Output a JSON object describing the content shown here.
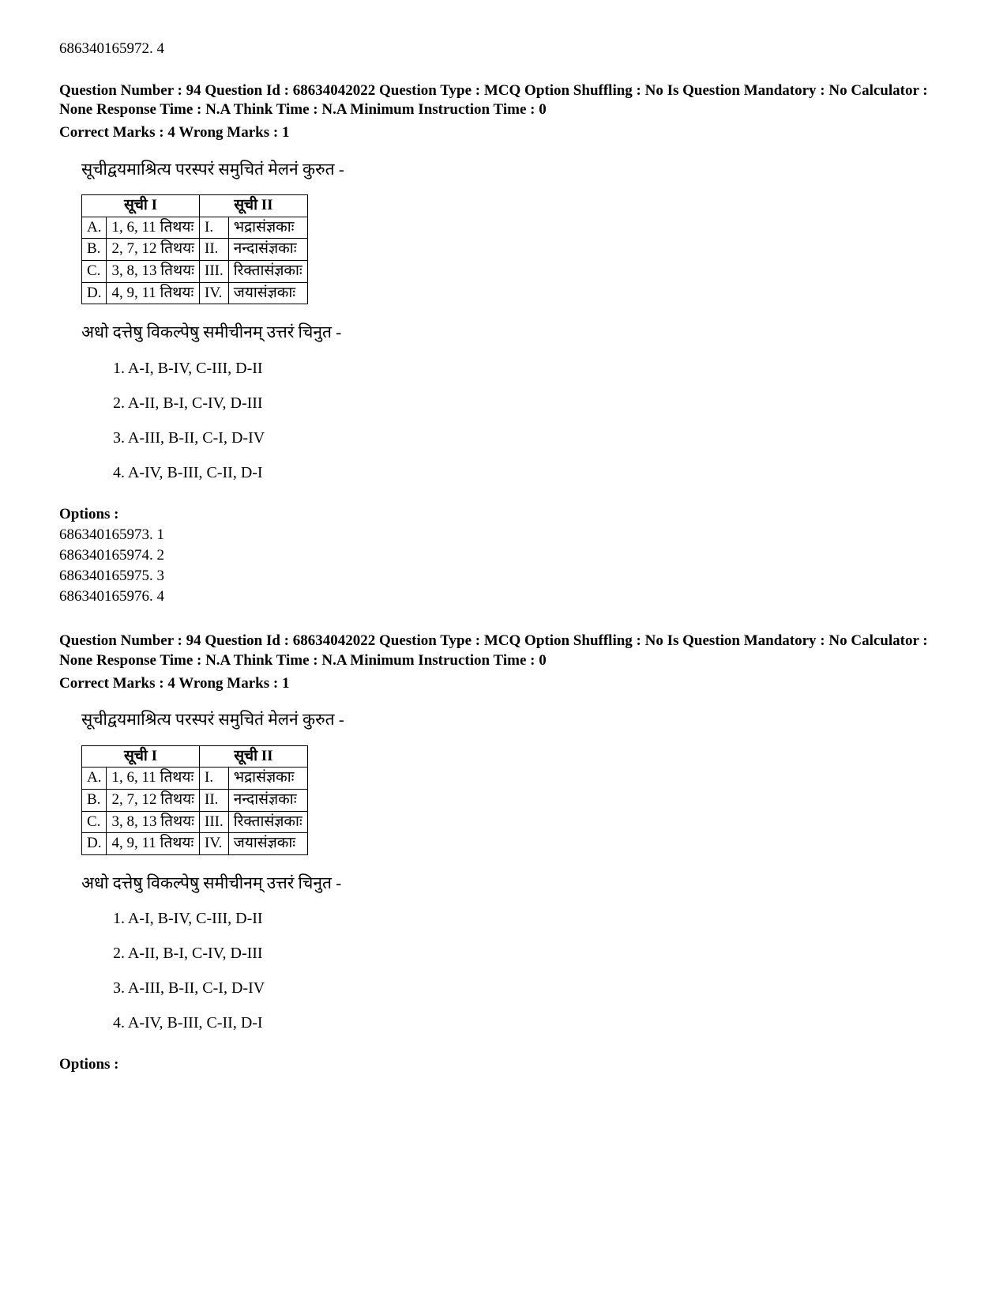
{
  "top_residual_option": "686340165972. 4",
  "questions": [
    {
      "meta": "Question Number : 94 Question Id : 68634042022 Question Type : MCQ Option Shuffling : No Is Question Mandatory : No Calculator : None Response Time : N.A Think Time : N.A Minimum Instruction Time : 0",
      "marks": "Correct Marks : 4 Wrong Marks : 1",
      "instruction": "सूचीद्वयमाश्रित्य परस्परं समुचितं मेलनं कुरुत -",
      "table": {
        "headers": {
          "h1": "सूची I",
          "h2": "सूची II"
        },
        "rows": [
          {
            "la": "A.",
            "c1": "1, 6, 11 तिथयः",
            "lb": "I.",
            "c2": "भद्रासंज्ञकाः"
          },
          {
            "la": "B.",
            "c1": "2, 7, 12 तिथयः",
            "lb": "II.",
            "c2": "नन्दासंज्ञकाः"
          },
          {
            "la": "C.",
            "c1": "3, 8, 13 तिथयः",
            "lb": "III.",
            "c2": "रिक्तासंज्ञकाः"
          },
          {
            "la": "D.",
            "c1": "4, 9, 11 तिथयः",
            "lb": "IV.",
            "c2": "जयासंज्ञकाः"
          }
        ]
      },
      "sub_instruction": "अधो दत्तेषु विकल्पेषु समीचीनम् उत्तरं चिनुत -",
      "choices": [
        "1. A-I, B-IV, C-III, D-II",
        "2. A-II, B-I, C-IV, D-III",
        "3. A-III, B-II, C-I, D-IV",
        "4. A-IV, B-III, C-II, D-I"
      ],
      "options_label": "Options :",
      "options": [
        "686340165973. 1",
        "686340165974. 2",
        "686340165975. 3",
        "686340165976. 4"
      ]
    },
    {
      "meta": "Question Number : 94 Question Id : 68634042022 Question Type : MCQ Option Shuffling : No Is Question Mandatory : No Calculator : None Response Time : N.A Think Time : N.A Minimum Instruction Time : 0",
      "marks": "Correct Marks : 4 Wrong Marks : 1",
      "instruction": "सूचीद्वयमाश्रित्य परस्परं समुचितं मेलनं कुरुत -",
      "table": {
        "headers": {
          "h1": "सूची I",
          "h2": "सूची II"
        },
        "rows": [
          {
            "la": "A.",
            "c1": "1, 6, 11 तिथयः",
            "lb": "I.",
            "c2": "भद्रासंज्ञकाः"
          },
          {
            "la": "B.",
            "c1": "2, 7, 12 तिथयः",
            "lb": "II.",
            "c2": "नन्दासंज्ञकाः"
          },
          {
            "la": "C.",
            "c1": "3, 8, 13 तिथयः",
            "lb": "III.",
            "c2": "रिक्तासंज्ञकाः"
          },
          {
            "la": "D.",
            "c1": "4, 9, 11 तिथयः",
            "lb": "IV.",
            "c2": "जयासंज्ञकाः"
          }
        ]
      },
      "sub_instruction": "अधो दत्तेषु विकल्पेषु समीचीनम् उत्तरं चिनुत -",
      "choices": [
        "1. A-I, B-IV, C-III, D-II",
        "2. A-II, B-I, C-IV, D-III",
        "3. A-III, B-II, C-I, D-IV",
        "4. A-IV, B-III, C-II, D-I"
      ],
      "options_label": "Options :",
      "options": []
    }
  ]
}
